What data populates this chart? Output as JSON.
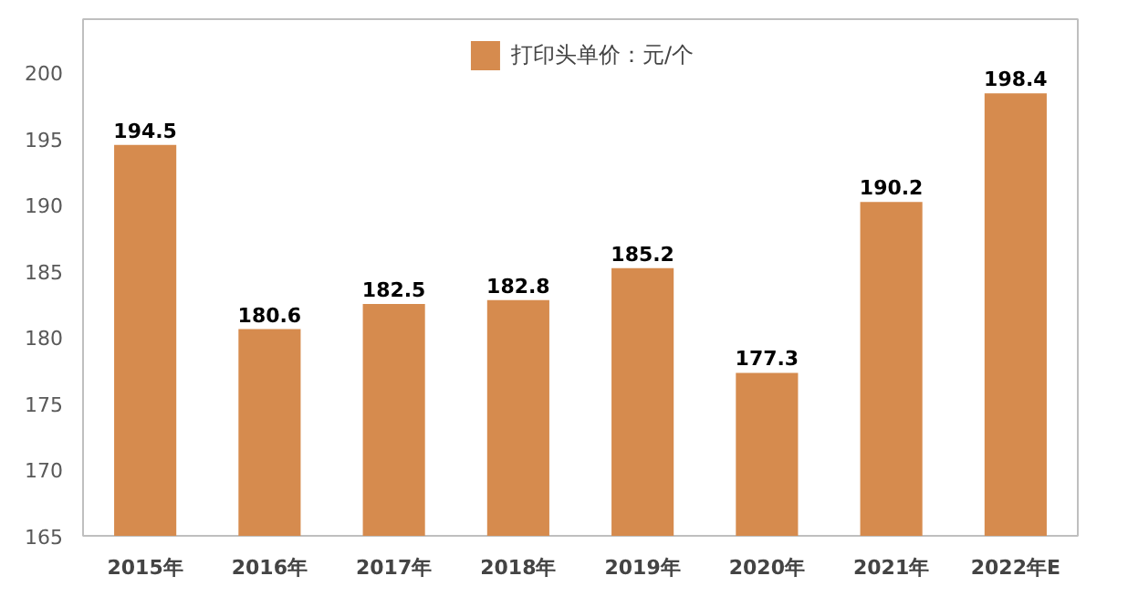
{
  "chart_data": {
    "type": "bar",
    "categories": [
      "2015年",
      "2016年",
      "2017年",
      "2018年",
      "2019年",
      "2020年",
      "2021年",
      "2022年E"
    ],
    "series": [
      {
        "name": "打印头单价：元/个",
        "color": "#d68b4e",
        "values": [
          194.5,
          180.6,
          182.5,
          182.8,
          185.2,
          177.3,
          190.2,
          198.4
        ]
      }
    ],
    "ylim": [
      165,
      204
    ],
    "yticks": [
      165,
      170,
      175,
      180,
      185,
      190,
      195,
      200
    ],
    "data_labels": true,
    "legend": "top",
    "grid": false
  }
}
